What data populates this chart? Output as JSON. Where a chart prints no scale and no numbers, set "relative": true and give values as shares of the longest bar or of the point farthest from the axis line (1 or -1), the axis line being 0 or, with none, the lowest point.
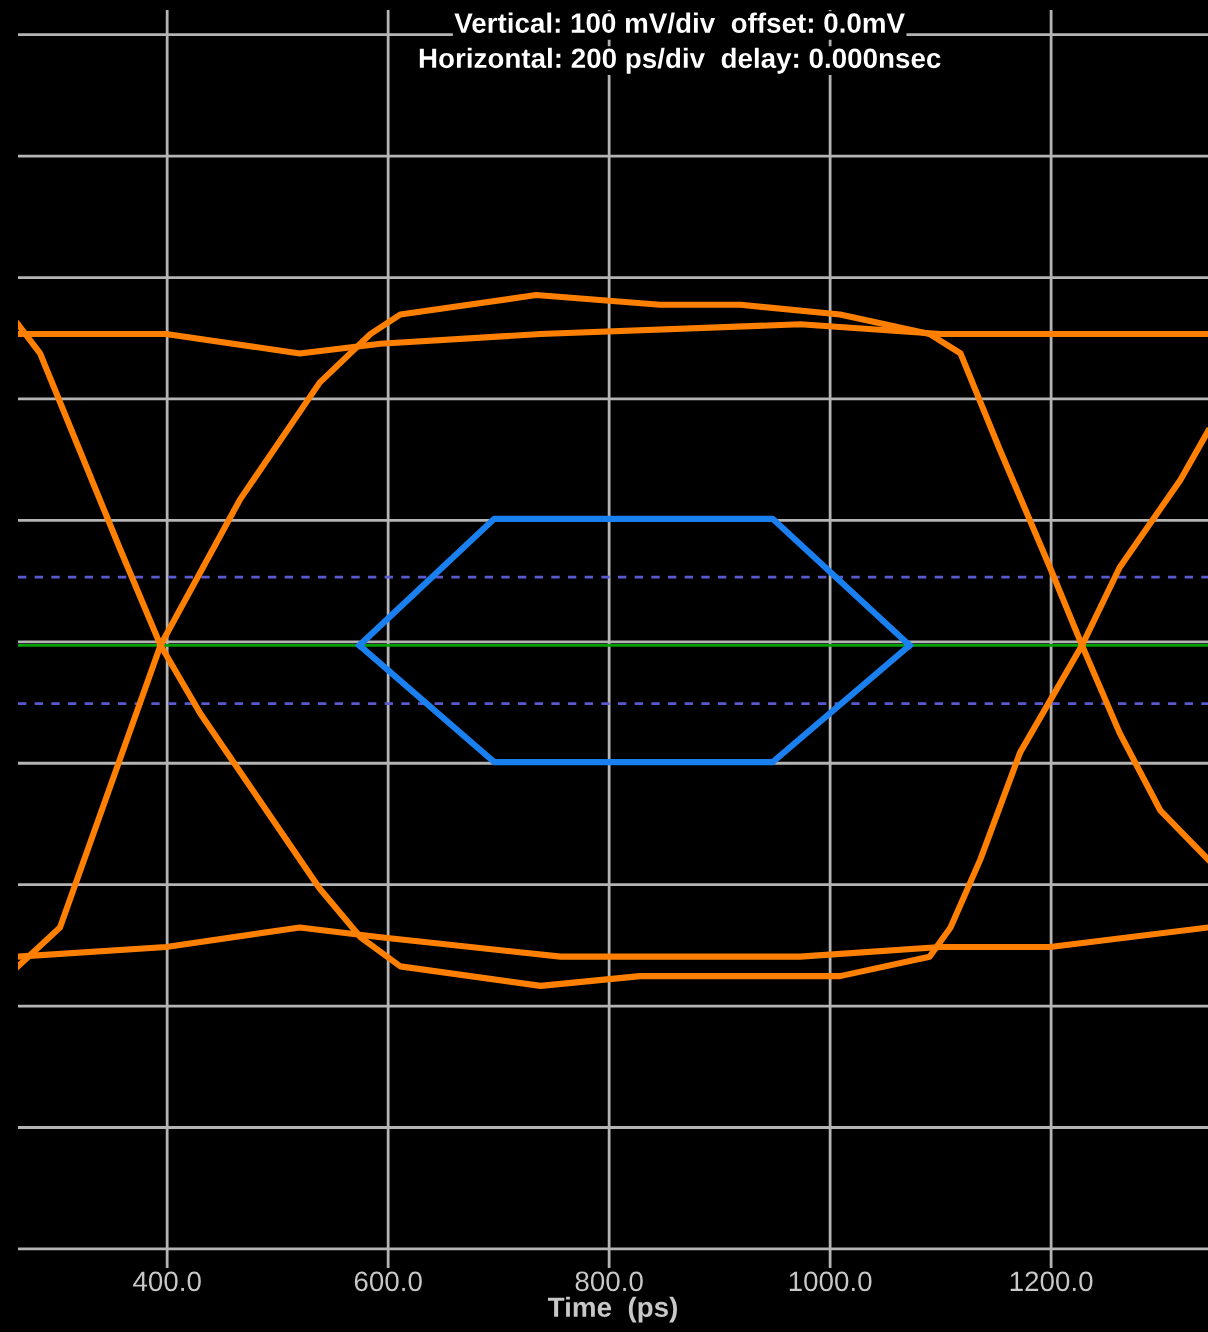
{
  "chart_data": {
    "type": "line",
    "title": "Vertical: 100 mV/div  offset: 0.0mV",
    "subtitle": "Horizontal: 200 ps/div  delay: 0.000nsec",
    "xlabel": "Time  (ps)",
    "relative": true,
    "xlim": [
      265,
      1342
    ],
    "xticks": [
      {
        "value": 400,
        "label": "400.0"
      },
      {
        "value": 600,
        "label": "600.0"
      },
      {
        "value": 800,
        "label": "800.0"
      },
      {
        "value": 1000,
        "label": "1000.0"
      },
      {
        "value": 1200,
        "label": "1200.0"
      }
    ],
    "tick_labels": "x",
    "grid": true,
    "marker": "none",
    "line_style": "solid",
    "series": [
      {
        "color": "#ff8000",
        "x": [
          265,
          399,
          520,
          593,
          738,
          973,
          1100,
          1199,
          1342
        ],
        "values": [
          0.96,
          0.96,
          0.94,
          0.95,
          0.96,
          0.97,
          0.96,
          0.96,
          0.96
        ]
      },
      {
        "color": "#ff8000",
        "x": [
          265,
          303,
          394,
          466,
          538,
          584,
          611,
          734,
          846,
          919,
          1009,
          1090,
          1118,
          1154,
          1199,
          1228,
          1262,
          1299,
          1342
        ],
        "values": [
          0.31,
          0.35,
          0.64,
          0.79,
          0.91,
          0.96,
          0.98,
          1.0,
          0.99,
          0.99,
          0.98,
          0.96,
          0.94,
          0.84,
          0.72,
          0.64,
          0.55,
          0.47,
          0.42
        ]
      },
      {
        "color": "#ff8000",
        "x": [
          265,
          285,
          321,
          357,
          394,
          430,
          484,
          538,
          575,
          611,
          738,
          828,
          919,
          1009,
          1090,
          1109,
          1136,
          1172,
          1228,
          1262,
          1317,
          1342
        ],
        "values": [
          0.97,
          0.94,
          0.84,
          0.74,
          0.64,
          0.57,
          0.48,
          0.39,
          0.34,
          0.31,
          0.29,
          0.3,
          0.3,
          0.3,
          0.32,
          0.35,
          0.42,
          0.53,
          0.64,
          0.72,
          0.81,
          0.86
        ]
      },
      {
        "color": "#ff8000",
        "x": [
          265,
          399,
          520,
          593,
          756,
          973,
          1100,
          1199,
          1342
        ],
        "values": [
          0.32,
          0.33,
          0.35,
          0.34,
          0.32,
          0.32,
          0.33,
          0.33,
          0.35
        ]
      },
      {
        "color": "#1a80f0",
        "x": [
          574,
          696,
          948,
          1072
        ],
        "values": [
          0.64,
          0.77,
          0.77,
          0.64
        ]
      },
      {
        "color": "#1a80f0",
        "x": [
          574,
          696,
          948,
          1072
        ],
        "values": [
          0.64,
          0.52,
          0.52,
          0.64
        ]
      }
    ],
    "ref_lines": [
      {
        "axis": "y",
        "value": 0.64,
        "color": "#00a000",
        "line_style": "solid"
      },
      {
        "axis": "y",
        "value": 0.71,
        "color": "#5a5ad0",
        "line_style": "dashed"
      },
      {
        "axis": "y",
        "value": 0.58,
        "color": "#5a5ad0",
        "line_style": "dashed"
      }
    ]
  }
}
